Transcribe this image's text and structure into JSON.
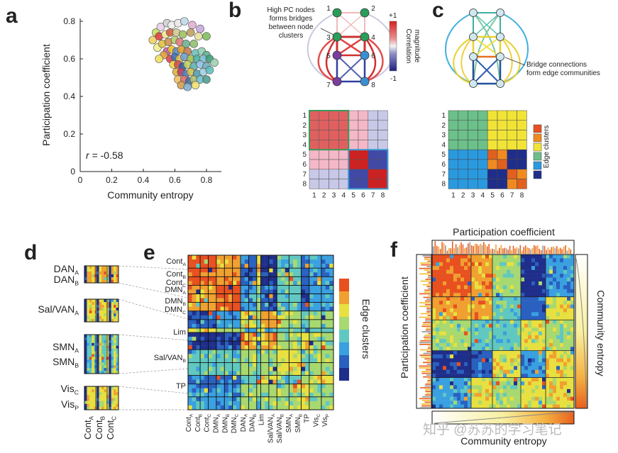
{
  "panels": {
    "a": {
      "label": "a"
    },
    "b": {
      "label": "b",
      "annotation": [
        "High PC nodes",
        "forms bridges",
        "between node",
        "clusters"
      ],
      "colorbar_top": "+1",
      "colorbar_bottom": "-1",
      "colorbar_label": [
        "Correlation",
        "magnitude"
      ],
      "node_labels": [
        "1",
        "2",
        "3",
        "4",
        "5",
        "6",
        "7",
        "8"
      ],
      "matrix_labels": [
        "1",
        "2",
        "3",
        "4",
        "5",
        "6",
        "7",
        "8"
      ]
    },
    "c": {
      "label": "c",
      "annotation": [
        "Bridge connections",
        "form edge communities"
      ],
      "legend_label": "Edge clusters",
      "matrix_labels": [
        "1",
        "2",
        "3",
        "4",
        "5",
        "6",
        "7",
        "8"
      ]
    },
    "d": {
      "label": "d",
      "bottom_labels": [
        "Cont_A",
        "Cont_B",
        "Cont_C"
      ]
    },
    "e": {
      "label": "e",
      "colorbar_label": "Edge clusters"
    },
    "f": {
      "label": "f",
      "top_label": "Participation coefficient",
      "left_label": "Participation coefficient",
      "right_label": "Community entropy",
      "bottom_label": "Community entropy"
    }
  },
  "d_rows": [
    {
      "main": "DAN",
      "sub": "A"
    },
    {
      "main": "DAN",
      "sub": "B"
    },
    {
      "main": "Sal/VAN",
      "sub": "A"
    },
    {
      "main": "SMN",
      "sub": "A"
    },
    {
      "main": "SMN",
      "sub": "B"
    },
    {
      "main": "Vis",
      "sub": "C"
    },
    {
      "main": "Vis",
      "sub": "P"
    }
  ],
  "d_cols": [
    {
      "main": "Cont",
      "sub": "A"
    },
    {
      "main": "Cont",
      "sub": "B"
    },
    {
      "main": "Cont",
      "sub": "C"
    }
  ],
  "e_rows": [
    {
      "main": "Cont",
      "sub": "A"
    },
    {
      "main": "Cont",
      "sub": "B"
    },
    {
      "main": "Cont",
      "sub": "C"
    },
    {
      "main": "DMN",
      "sub": "A"
    },
    {
      "main": "DMN",
      "sub": "B"
    },
    {
      "main": "DMN",
      "sub": "C"
    },
    {
      "main": "Lim",
      "sub": ""
    },
    {
      "main": "Sal/VAN",
      "sub": "B"
    },
    {
      "main": "TP",
      "sub": ""
    }
  ],
  "e_cols": [
    {
      "main": "Cont",
      "sub": "A"
    },
    {
      "main": "Cont",
      "sub": "B"
    },
    {
      "main": "Cont",
      "sub": "C"
    },
    {
      "main": "DMN",
      "sub": "A"
    },
    {
      "main": "DMN",
      "sub": "B"
    },
    {
      "main": "DMN",
      "sub": "C"
    },
    {
      "main": "DAN",
      "sub": "A"
    },
    {
      "main": "DAN",
      "sub": "B"
    },
    {
      "main": "Lim",
      "sub": ""
    },
    {
      "main": "Sal/VAN",
      "sub": "A"
    },
    {
      "main": "Sal/VAN",
      "sub": "B"
    },
    {
      "main": "SMN",
      "sub": "A"
    },
    {
      "main": "SMN",
      "sub": "B"
    },
    {
      "main": "TP",
      "sub": ""
    },
    {
      "main": "Vis",
      "sub": "C"
    },
    {
      "main": "Vis",
      "sub": "P"
    }
  ],
  "chart_data": {
    "type": "scatter",
    "xlabel": "Community entropy",
    "ylabel": "Participation coefficient",
    "xlim": [
      0,
      0.9
    ],
    "ylim": [
      0,
      0.8
    ],
    "xticks": [
      "0",
      "0.2",
      "0.4",
      "0.6",
      "0.8"
    ],
    "yticks": [
      "0",
      "0.2",
      "0.4",
      "0.6",
      "0.8"
    ],
    "annotation_r_symbol": "r",
    "annotation_r_value": "= -0.58",
    "points": [
      {
        "x": 0.48,
        "y": 0.74,
        "c": "#c8e060"
      },
      {
        "x": 0.51,
        "y": 0.77,
        "c": "#e8d0e8"
      },
      {
        "x": 0.55,
        "y": 0.79,
        "c": "#d0d0d0"
      },
      {
        "x": 0.58,
        "y": 0.78,
        "c": "#f0f0f0"
      },
      {
        "x": 0.62,
        "y": 0.79,
        "c": "#e8e8e8"
      },
      {
        "x": 0.66,
        "y": 0.8,
        "c": "#c0d8e8"
      },
      {
        "x": 0.71,
        "y": 0.78,
        "c": "#e0b0d0"
      },
      {
        "x": 0.76,
        "y": 0.76,
        "c": "#c8a8e0"
      },
      {
        "x": 0.46,
        "y": 0.7,
        "c": "#f0d060"
      },
      {
        "x": 0.5,
        "y": 0.72,
        "c": "#e04040"
      },
      {
        "x": 0.54,
        "y": 0.73,
        "c": "#f0e890"
      },
      {
        "x": 0.57,
        "y": 0.74,
        "c": "#d06040"
      },
      {
        "x": 0.61,
        "y": 0.74,
        "c": "#d0c890"
      },
      {
        "x": 0.65,
        "y": 0.73,
        "c": "#a0c060"
      },
      {
        "x": 0.7,
        "y": 0.74,
        "c": "#c0a060"
      },
      {
        "x": 0.75,
        "y": 0.72,
        "c": "#e8e0a0"
      },
      {
        "x": 0.8,
        "y": 0.72,
        "c": "#80c060"
      },
      {
        "x": 0.49,
        "y": 0.66,
        "c": "#f0f090"
      },
      {
        "x": 0.52,
        "y": 0.68,
        "c": "#e0c040"
      },
      {
        "x": 0.56,
        "y": 0.69,
        "c": "#d09050"
      },
      {
        "x": 0.6,
        "y": 0.7,
        "c": "#b0d070"
      },
      {
        "x": 0.63,
        "y": 0.69,
        "c": "#e08080"
      },
      {
        "x": 0.67,
        "y": 0.68,
        "c": "#70b090"
      },
      {
        "x": 0.72,
        "y": 0.68,
        "c": "#90c070"
      },
      {
        "x": 0.55,
        "y": 0.64,
        "c": "#c060a0"
      },
      {
        "x": 0.58,
        "y": 0.65,
        "c": "#f0c030"
      },
      {
        "x": 0.61,
        "y": 0.64,
        "c": "#6090c0"
      },
      {
        "x": 0.64,
        "y": 0.65,
        "c": "#e0a030"
      },
      {
        "x": 0.68,
        "y": 0.64,
        "c": "#c08050"
      },
      {
        "x": 0.73,
        "y": 0.63,
        "c": "#70c0c0"
      },
      {
        "x": 0.77,
        "y": 0.64,
        "c": "#90d0b0"
      },
      {
        "x": 0.8,
        "y": 0.62,
        "c": "#60b090"
      },
      {
        "x": 0.57,
        "y": 0.6,
        "c": "#e04050"
      },
      {
        "x": 0.6,
        "y": 0.61,
        "c": "#4070b0"
      },
      {
        "x": 0.63,
        "y": 0.6,
        "c": "#e0c050"
      },
      {
        "x": 0.66,
        "y": 0.61,
        "c": "#70a0d0"
      },
      {
        "x": 0.7,
        "y": 0.6,
        "c": "#a0c050"
      },
      {
        "x": 0.74,
        "y": 0.6,
        "c": "#50b0a0"
      },
      {
        "x": 0.78,
        "y": 0.6,
        "c": "#80c0d0"
      },
      {
        "x": 0.82,
        "y": 0.6,
        "c": "#40a080"
      },
      {
        "x": 0.59,
        "y": 0.57,
        "c": "#f0d040"
      },
      {
        "x": 0.62,
        "y": 0.57,
        "c": "#d05050"
      },
      {
        "x": 0.65,
        "y": 0.56,
        "c": "#3060a0"
      },
      {
        "x": 0.68,
        "y": 0.57,
        "c": "#c0d060"
      },
      {
        "x": 0.72,
        "y": 0.56,
        "c": "#60b0b0"
      },
      {
        "x": 0.76,
        "y": 0.57,
        "c": "#90c0e0"
      },
      {
        "x": 0.8,
        "y": 0.56,
        "c": "#70b0c0"
      },
      {
        "x": 0.61,
        "y": 0.53,
        "c": "#e0b040"
      },
      {
        "x": 0.64,
        "y": 0.53,
        "c": "#c04060"
      },
      {
        "x": 0.67,
        "y": 0.52,
        "c": "#5080c0"
      },
      {
        "x": 0.7,
        "y": 0.53,
        "c": "#d0c050"
      },
      {
        "x": 0.74,
        "y": 0.52,
        "c": "#50a0b0"
      },
      {
        "x": 0.78,
        "y": 0.53,
        "c": "#a0d0e0"
      },
      {
        "x": 0.82,
        "y": 0.54,
        "c": "#60c0c0"
      },
      {
        "x": 0.62,
        "y": 0.49,
        "c": "#f0c060"
      },
      {
        "x": 0.66,
        "y": 0.49,
        "c": "#e07070"
      },
      {
        "x": 0.69,
        "y": 0.48,
        "c": "#4070a0"
      },
      {
        "x": 0.72,
        "y": 0.49,
        "c": "#b0c070"
      },
      {
        "x": 0.76,
        "y": 0.49,
        "c": "#70c0d0"
      },
      {
        "x": 0.8,
        "y": 0.49,
        "c": "#50a090"
      },
      {
        "x": 0.64,
        "y": 0.46,
        "c": "#d0a050"
      },
      {
        "x": 0.68,
        "y": 0.45,
        "c": "#80b0d0"
      },
      {
        "x": 0.73,
        "y": 0.46,
        "c": "#f0e070"
      },
      {
        "x": 0.53,
        "y": 0.62,
        "c": "#e0a040"
      },
      {
        "x": 0.5,
        "y": 0.6,
        "c": "#f0e060"
      },
      {
        "x": 0.85,
        "y": 0.58,
        "c": "#a0d0b0"
      }
    ]
  },
  "watermark": "知乎 @苏苏的学习笔记"
}
